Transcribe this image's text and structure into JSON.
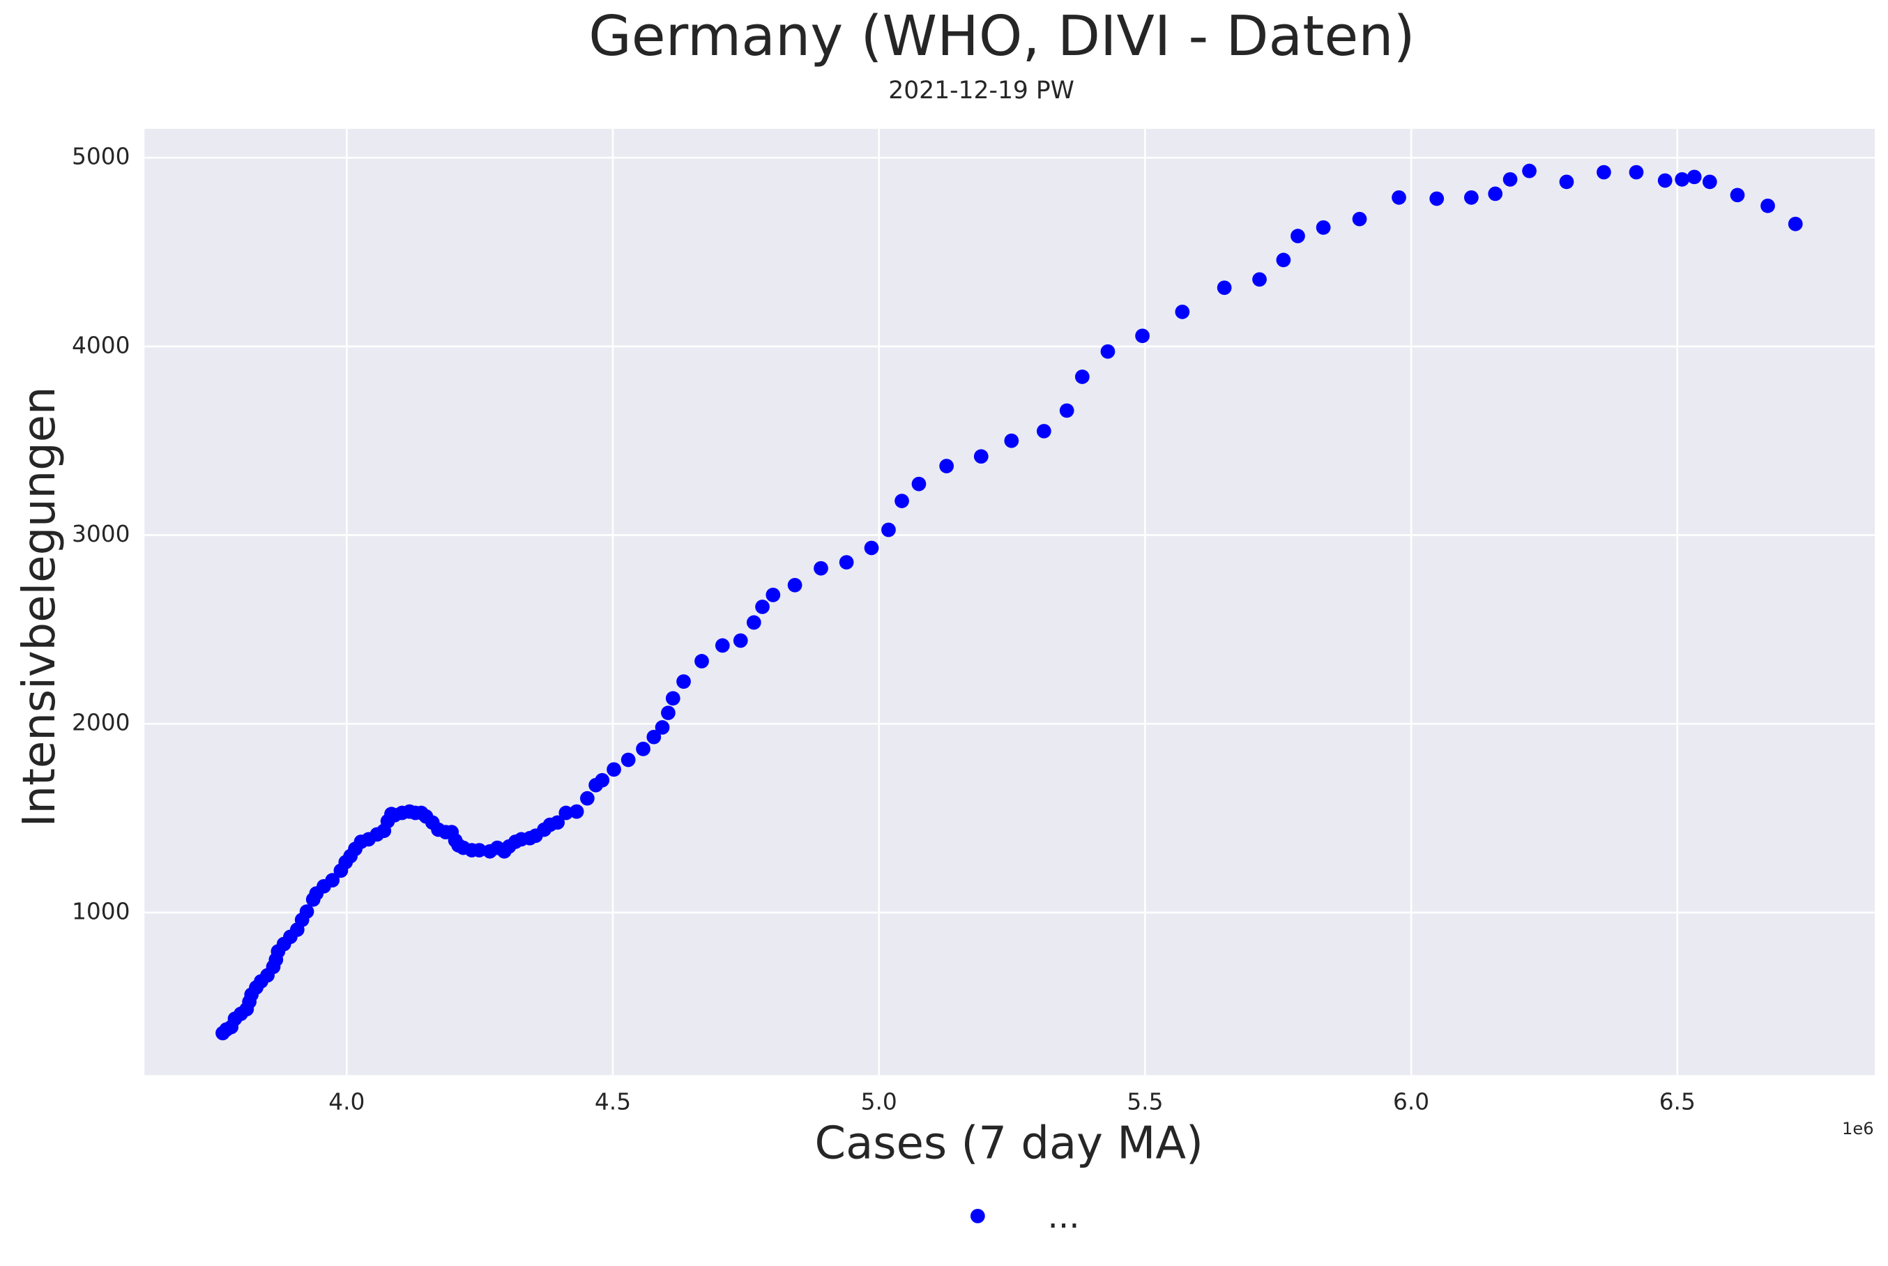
{
  "chart_data": {
    "type": "scatter",
    "title": "Germany (WHO, DIVI - Daten)",
    "subtitle": "2021-12-19 PW",
    "x_label": "Cases (7 day MA)",
    "y_label": "Intensivbelegungen",
    "x_offset_label": "1e6",
    "grid": true,
    "legend": "bottom",
    "xlim": [
      3.62,
      6.871
    ],
    "ylim": [
      138,
      5153
    ],
    "xticks": [
      {
        "value": 4,
        "label": "4.0"
      },
      {
        "value": 4.5,
        "label": "4.5"
      },
      {
        "value": 5,
        "label": "5.0"
      },
      {
        "value": 5.5,
        "label": "5.5"
      },
      {
        "value": 6,
        "label": "6.0"
      },
      {
        "value": 6.5,
        "label": "6.5"
      }
    ],
    "yticks": [
      1000,
      2000,
      3000,
      4000,
      5000
    ],
    "series": [
      {
        "name": "...",
        "color": "#0000ff",
        "x": [
          3.767,
          3.774,
          3.783,
          3.79,
          3.801,
          3.812,
          3.817,
          3.821,
          3.83,
          3.839,
          3.851,
          3.862,
          3.867,
          3.871,
          3.882,
          3.894,
          3.907,
          3.916,
          3.925,
          3.937,
          3.943,
          3.957,
          3.973,
          3.989,
          3.998,
          4.007,
          4.016,
          4.027,
          4.041,
          4.057,
          4.07,
          4.077,
          4.084,
          4.09,
          4.104,
          4.118,
          4.129,
          4.14,
          4.149,
          4.161,
          4.172,
          4.186,
          4.197,
          4.204,
          4.21,
          4.219,
          4.235,
          4.249,
          4.269,
          4.283,
          4.296,
          4.305,
          4.317,
          4.328,
          4.344,
          4.355,
          4.371,
          4.382,
          4.396,
          4.412,
          4.432,
          4.452,
          4.468,
          4.48,
          4.502,
          4.529,
          4.557,
          4.577,
          4.593,
          4.604,
          4.613,
          4.633,
          4.667,
          4.706,
          4.74,
          4.765,
          4.781,
          4.801,
          4.842,
          4.891,
          4.939,
          4.986,
          5.018,
          5.043,
          5.075,
          5.127,
          5.192,
          5.249,
          5.31,
          5.353,
          5.382,
          5.43,
          5.495,
          5.57,
          5.649,
          5.715,
          5.76,
          5.787,
          5.835,
          5.903,
          5.977,
          6.048,
          6.113,
          6.158,
          6.186,
          6.222,
          6.292,
          6.362,
          6.423,
          6.477,
          6.509,
          6.532,
          6.561,
          6.613,
          6.67,
          6.722
        ],
        "values": [
          361,
          380,
          393,
          437,
          463,
          488,
          527,
          565,
          603,
          635,
          667,
          712,
          750,
          794,
          833,
          871,
          909,
          961,
          1005,
          1069,
          1101,
          1139,
          1171,
          1222,
          1267,
          1299,
          1337,
          1375,
          1388,
          1414,
          1433,
          1484,
          1522,
          1516,
          1528,
          1535,
          1528,
          1528,
          1509,
          1477,
          1439,
          1426,
          1426,
          1382,
          1356,
          1343,
          1330,
          1330,
          1324,
          1343,
          1324,
          1350,
          1375,
          1388,
          1394,
          1407,
          1439,
          1465,
          1477,
          1528,
          1535,
          1605,
          1675,
          1701,
          1758,
          1809,
          1867,
          1930,
          1981,
          2058,
          2135,
          2224,
          2332,
          2415,
          2441,
          2537,
          2620,
          2683,
          2735,
          2824,
          2856,
          2932,
          3028,
          3181,
          3271,
          3366,
          3417,
          3500,
          3551,
          3660,
          3839,
          3973,
          4056,
          4183,
          4311,
          4355,
          4458,
          4585,
          4630,
          4675,
          4789,
          4783,
          4789,
          4809,
          4885,
          4930,
          4872,
          4923,
          4923,
          4879,
          4885,
          4898,
          4872,
          4802,
          4745,
          4649
        ]
      }
    ]
  }
}
